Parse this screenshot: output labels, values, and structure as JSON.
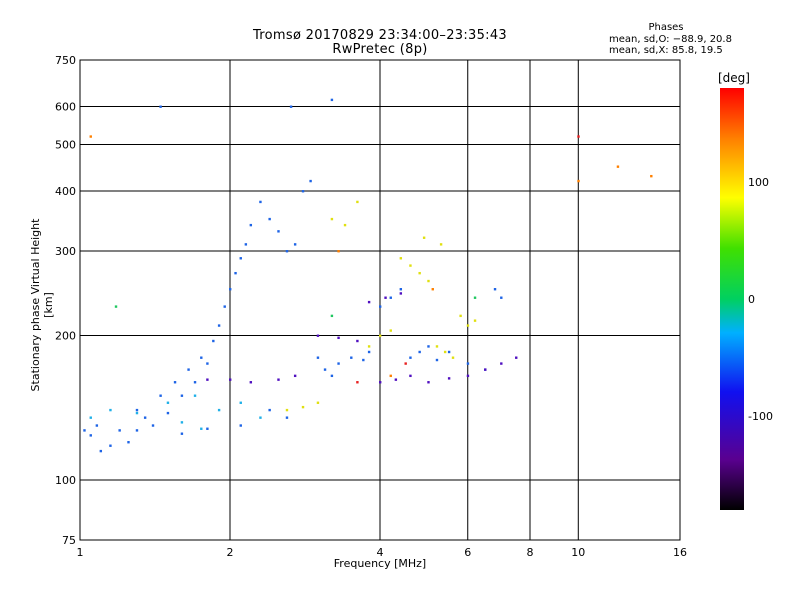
{
  "chart_data": {
    "type": "scatter",
    "title": "Tromsø 20170829 23:34:00–23:35:43",
    "subtitle": "RwPretec (8p)",
    "xlabel": "Frequency [MHz]",
    "ylabel": "Stationary phase Virtual Height [km]",
    "x_scale": "log",
    "y_scale": "log",
    "xlim": [
      1,
      16
    ],
    "ylim": [
      75,
      750
    ],
    "x_ticks": [
      1,
      2,
      4,
      6,
      8,
      10,
      16
    ],
    "y_ticks": [
      75,
      100,
      200,
      300,
      400,
      500,
      600,
      750
    ],
    "grid": true,
    "colorbar": {
      "label": "[deg]",
      "range": [
        -180,
        180
      ],
      "ticks": [
        100,
        0,
        -100
      ],
      "colormap": "rainbow: black-purple-blue-cyan-green-yellow-red"
    },
    "stats": {
      "heading": "Phases",
      "line_o": "mean, sd,O: −88.9, 20.8",
      "line_x": "mean, sd,X:  85.8, 19.5"
    },
    "series": [
      {
        "color": "#1e64e6",
        "points": [
          [
            1.02,
            127
          ],
          [
            1.05,
            124
          ],
          [
            1.08,
            130
          ],
          [
            1.1,
            115
          ],
          [
            1.15,
            118
          ],
          [
            1.2,
            127
          ],
          [
            1.25,
            120
          ],
          [
            1.3,
            140
          ],
          [
            1.35,
            135
          ],
          [
            1.4,
            130
          ],
          [
            1.45,
            150
          ],
          [
            1.5,
            138
          ],
          [
            1.55,
            160
          ],
          [
            1.6,
            150
          ],
          [
            1.65,
            170
          ],
          [
            1.7,
            160
          ],
          [
            1.75,
            180
          ],
          [
            1.8,
            175
          ],
          [
            1.85,
            195
          ],
          [
            1.9,
            210
          ],
          [
            1.95,
            230
          ],
          [
            2.0,
            250
          ],
          [
            2.05,
            270
          ],
          [
            2.1,
            290
          ],
          [
            2.15,
            310
          ],
          [
            2.2,
            340
          ],
          [
            2.3,
            380
          ],
          [
            2.4,
            350
          ],
          [
            2.5,
            330
          ],
          [
            2.6,
            300
          ],
          [
            2.7,
            310
          ],
          [
            2.8,
            400
          ],
          [
            2.9,
            420
          ],
          [
            3.0,
            180
          ],
          [
            3.1,
            170
          ],
          [
            3.2,
            165
          ],
          [
            3.3,
            175
          ],
          [
            3.5,
            180
          ],
          [
            3.7,
            178
          ],
          [
            3.8,
            185
          ],
          [
            4.0,
            230
          ],
          [
            4.2,
            240
          ],
          [
            4.4,
            250
          ],
          [
            4.6,
            180
          ],
          [
            4.8,
            185
          ],
          [
            5.0,
            190
          ],
          [
            5.2,
            178
          ],
          [
            5.5,
            185
          ],
          [
            6.0,
            175
          ],
          [
            6.5,
            170
          ],
          [
            6.8,
            250
          ],
          [
            7.0,
            240
          ],
          [
            1.3,
            127
          ],
          [
            1.6,
            125
          ],
          [
            1.8,
            128
          ],
          [
            2.1,
            130
          ],
          [
            2.4,
            140
          ],
          [
            2.6,
            135
          ],
          [
            1.45,
            600
          ],
          [
            2.65,
            600
          ],
          [
            3.2,
            620
          ]
        ]
      },
      {
        "color": "#5010c0",
        "points": [
          [
            1.8,
            162
          ],
          [
            2.0,
            162
          ],
          [
            2.2,
            160
          ],
          [
            2.5,
            162
          ],
          [
            2.7,
            165
          ],
          [
            3.0,
            200
          ],
          [
            3.3,
            198
          ],
          [
            3.6,
            195
          ],
          [
            4.0,
            160
          ],
          [
            4.3,
            162
          ],
          [
            4.6,
            165
          ],
          [
            5.0,
            160
          ],
          [
            5.5,
            163
          ],
          [
            6.0,
            165
          ],
          [
            6.5,
            170
          ],
          [
            7.0,
            175
          ],
          [
            7.5,
            180
          ],
          [
            3.8,
            235
          ],
          [
            4.1,
            240
          ],
          [
            4.4,
            245
          ]
        ]
      },
      {
        "color": "#20b0e8",
        "points": [
          [
            1.05,
            135
          ],
          [
            1.15,
            140
          ],
          [
            1.3,
            138
          ],
          [
            1.5,
            145
          ],
          [
            1.7,
            150
          ],
          [
            1.9,
            140
          ],
          [
            2.1,
            145
          ],
          [
            2.3,
            135
          ],
          [
            1.6,
            132
          ],
          [
            1.75,
            128
          ]
        ]
      },
      {
        "color": "#e0e010",
        "points": [
          [
            2.6,
            140
          ],
          [
            2.8,
            142
          ],
          [
            3.0,
            145
          ],
          [
            3.2,
            350
          ],
          [
            3.4,
            340
          ],
          [
            3.6,
            380
          ],
          [
            3.8,
            190
          ],
          [
            4.0,
            200
          ],
          [
            4.2,
            205
          ],
          [
            4.4,
            290
          ],
          [
            4.6,
            280
          ],
          [
            4.8,
            270
          ],
          [
            5.0,
            260
          ],
          [
            5.2,
            190
          ],
          [
            5.4,
            185
          ],
          [
            5.6,
            180
          ],
          [
            5.8,
            220
          ],
          [
            6.0,
            210
          ],
          [
            6.2,
            215
          ],
          [
            4.9,
            320
          ],
          [
            5.3,
            310
          ]
        ]
      },
      {
        "color": "#ff8000",
        "points": [
          [
            3.3,
            300
          ],
          [
            4.2,
            165
          ],
          [
            5.1,
            250
          ],
          [
            1.05,
            520
          ],
          [
            10.0,
            420
          ],
          [
            12.0,
            450
          ],
          [
            14.0,
            430
          ]
        ]
      },
      {
        "color": "#e82020",
        "points": [
          [
            3.6,
            160
          ],
          [
            4.5,
            175
          ],
          [
            10.0,
            520
          ]
        ]
      },
      {
        "color": "#20c860",
        "points": [
          [
            1.18,
            230
          ],
          [
            6.2,
            240
          ],
          [
            3.2,
            220
          ]
        ]
      }
    ]
  }
}
